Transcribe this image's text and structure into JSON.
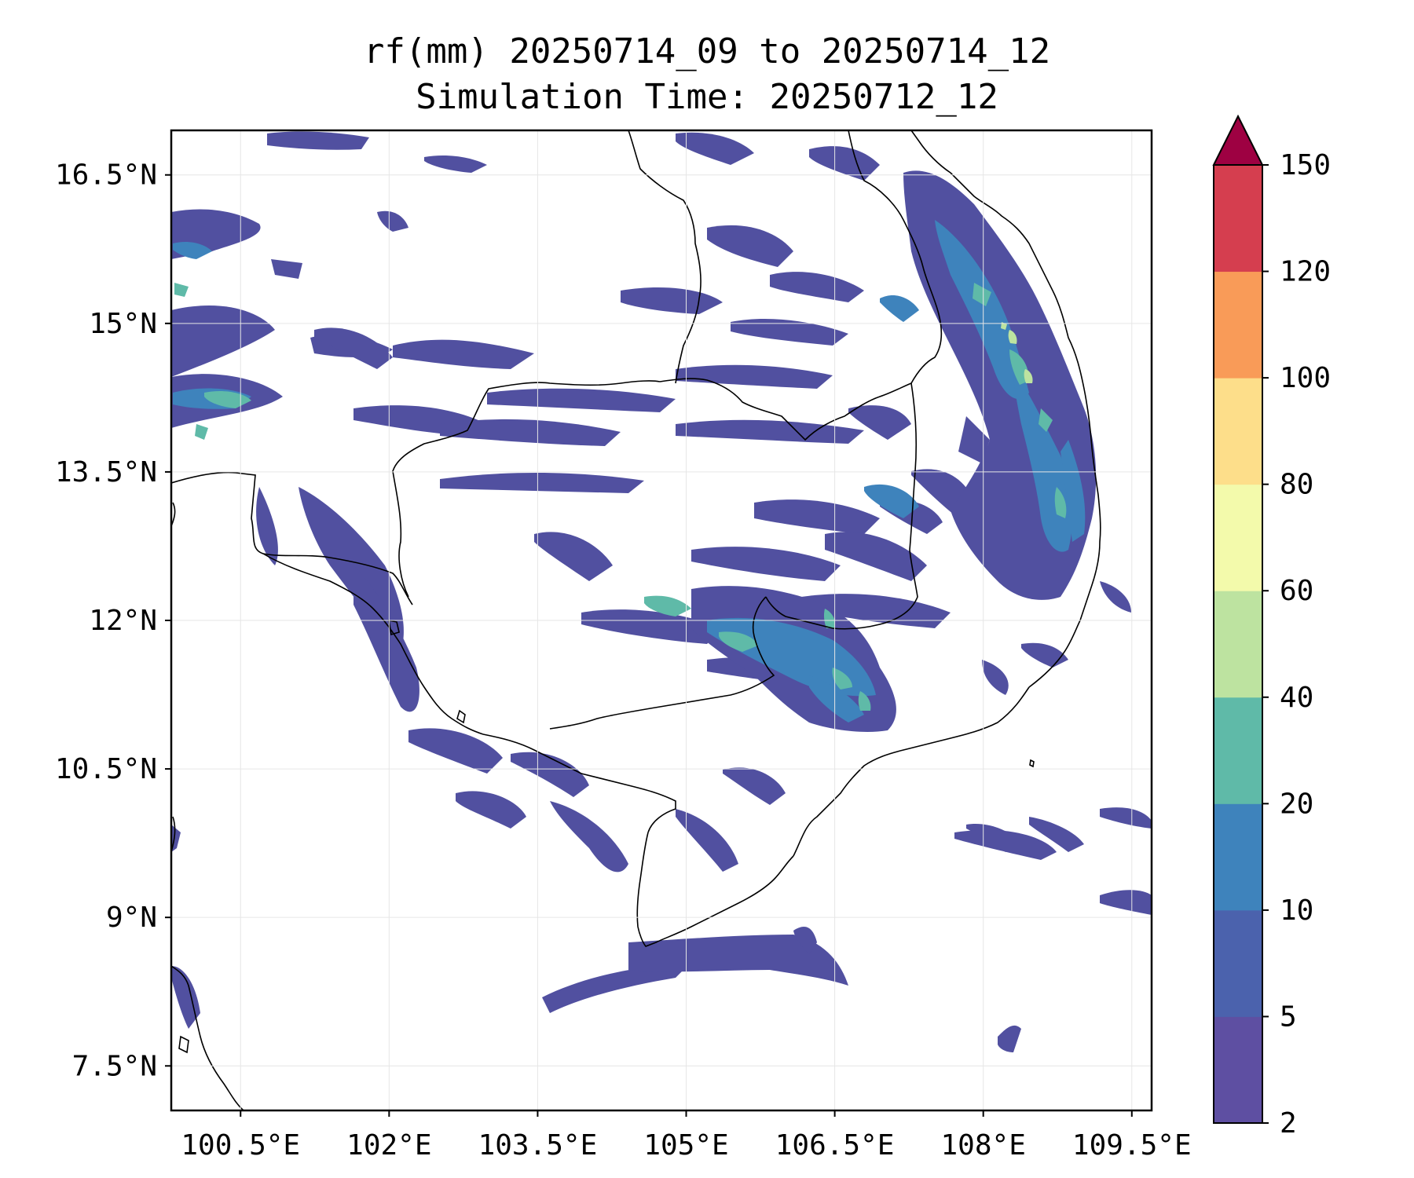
{
  "title": {
    "line1": "rf(mm) 20250714_09 to 20250714_12",
    "line2": "Simulation Time: 20250712_12"
  },
  "map": {
    "lon_ticks": [
      "100.5°E",
      "102°E",
      "103.5°E",
      "105°E",
      "106.5°E",
      "108°E",
      "109.5°E"
    ],
    "lat_ticks": [
      "16.5°N",
      "15°N",
      "13.5°N",
      "12°N",
      "10.5°N",
      "9°N",
      "7.5°N"
    ],
    "lon_values": [
      100.5,
      102,
      103.5,
      105,
      106.5,
      108,
      109.5
    ],
    "lat_values": [
      16.5,
      15,
      13.5,
      12,
      10.5,
      9,
      7.5
    ],
    "extent": {
      "lon": [
        99.8,
        109.7
      ],
      "lat": [
        7.05,
        16.95
      ]
    }
  },
  "colorbar": {
    "levels": [
      "2",
      "5",
      "10",
      "20",
      "40",
      "60",
      "80",
      "100",
      "120",
      "150"
    ],
    "colors": [
      "#5e4fa2",
      "#4b62ad",
      "#3e83bc",
      "#5fbaa8",
      "#bde3a0",
      "#f3faab",
      "#fdde8a",
      "#f99b58",
      "#d53e4f"
    ],
    "extend_color": "#9e0142"
  },
  "precip_colors": {
    "light": "#5150a0",
    "mid": "#3e83bc",
    "heavy": "#5fbaa8",
    "peak": "#bde3a0"
  }
}
